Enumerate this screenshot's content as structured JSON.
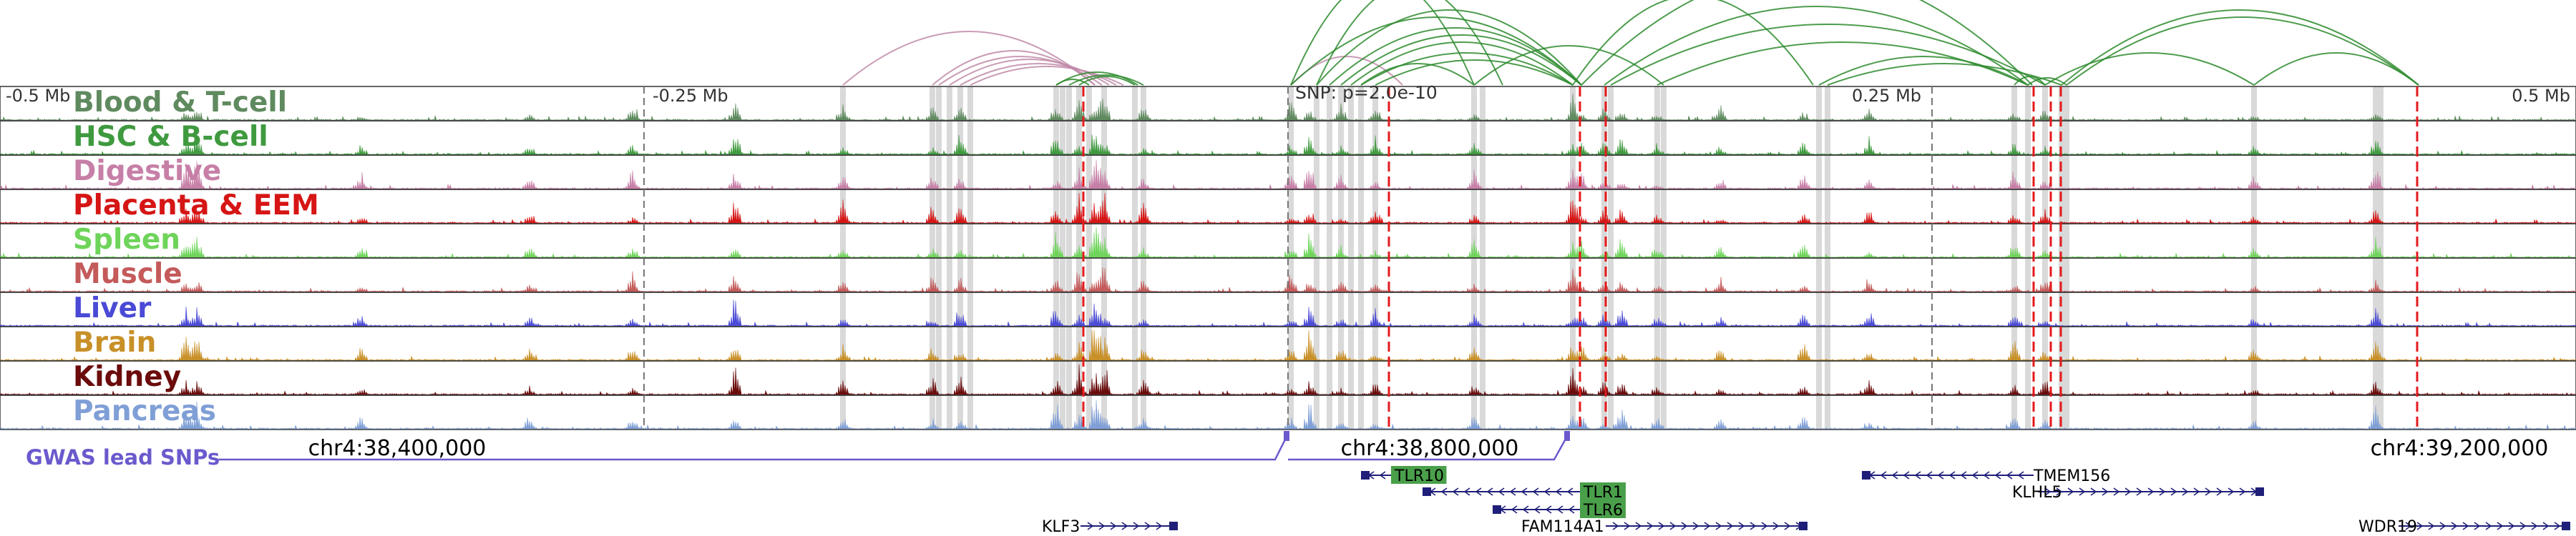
{
  "colors": {
    "red_marker": "#e41a1c",
    "grey_highlight": "#d9d9d9",
    "arc_green": "#2e8b2e",
    "arc_pink": "#c08aa8",
    "gwas": "#6a5acd",
    "gene": "#1f1f7a",
    "gene_box": "#4aa04a"
  },
  "distance_labels": {
    "minus_half": "-0.5 Mb",
    "minus_quarter": "-0.25 Mb",
    "plus_quarter": "0.25 Mb",
    "plus_half": "0.5 Mb"
  },
  "snp_label": "SNP: p=2.0e-10",
  "tracks": [
    {
      "name": "Blood & T-cell",
      "color": "#5f8a5f"
    },
    {
      "name": "HSC & B-cell",
      "color": "#3f9a3f"
    },
    {
      "name": "Digestive",
      "color": "#c77fa7"
    },
    {
      "name": "Placenta & EEM",
      "color": "#d61515"
    },
    {
      "name": "Spleen",
      "color": "#6ed45a"
    },
    {
      "name": "Muscle",
      "color": "#c45a5a"
    },
    {
      "name": "Liver",
      "color": "#4a4ad6"
    },
    {
      "name": "Brain",
      "color": "#c89028"
    },
    {
      "name": "Kidney",
      "color": "#6b0b0b"
    },
    {
      "name": "Pancreas",
      "color": "#7f9fd6"
    }
  ],
  "coordinate_labels": [
    "chr4:38,400,000",
    "chr4:38,800,000",
    "chr4:39,200,000"
  ],
  "gwas_label": "GWAS lead SNPs",
  "genes": [
    {
      "name": "TLR10",
      "highlighted": true
    },
    {
      "name": "TMEM156",
      "highlighted": false
    },
    {
      "name": "KLHL5",
      "highlighted": false
    },
    {
      "name": "TLR1",
      "highlighted": true
    },
    {
      "name": "TLR6",
      "highlighted": true
    },
    {
      "name": "KLF3",
      "highlighted": false
    },
    {
      "name": "FAM114A1",
      "highlighted": false
    },
    {
      "name": "WDR19",
      "highlighted": false
    }
  ]
}
